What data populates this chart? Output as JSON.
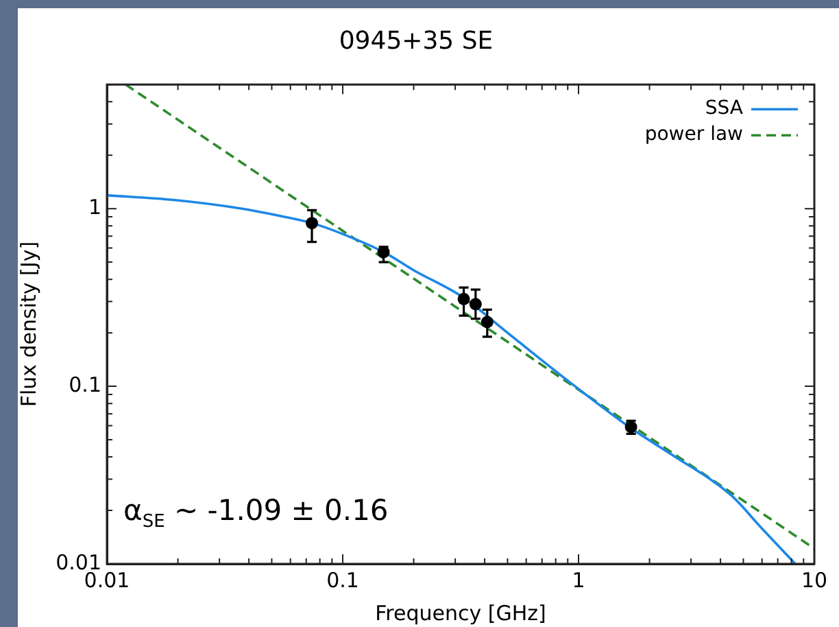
{
  "chart_data": {
    "type": "line",
    "title": "0945+35 SE",
    "xlabel": "Frequency [GHz]",
    "ylabel": "Flux density [Jy]",
    "log": "xy",
    "xlim": [
      0.01,
      10
    ],
    "ylim": [
      0.01,
      5
    ],
    "xticks": [
      0.01,
      {
        "value": 0.02,
        "label": null
      },
      {
        "value": 0.03,
        "label": null
      },
      {
        "value": 0.04,
        "label": null
      },
      {
        "value": 0.05,
        "label": null
      },
      {
        "value": 0.06,
        "label": null
      },
      {
        "value": 0.07,
        "label": null
      },
      {
        "value": 0.08,
        "label": null
      },
      {
        "value": 0.09,
        "label": null
      },
      0.1,
      {
        "value": 0.2,
        "label": null
      },
      {
        "value": 0.3,
        "label": null
      },
      {
        "value": 0.4,
        "label": null
      },
      {
        "value": 0.5,
        "label": null
      },
      {
        "value": 0.6,
        "label": null
      },
      {
        "value": 0.7,
        "label": null
      },
      {
        "value": 0.8,
        "label": null
      },
      {
        "value": 0.9,
        "label": null
      },
      1,
      {
        "value": 2,
        "label": null
      },
      {
        "value": 3,
        "label": null
      },
      {
        "value": 4,
        "label": null
      },
      {
        "value": 5,
        "label": null
      },
      {
        "value": 6,
        "label": null
      },
      {
        "value": 7,
        "label": null
      },
      {
        "value": 8,
        "label": null
      },
      {
        "value": 9,
        "label": null
      },
      10
    ],
    "yticks": [
      0.01,
      {
        "value": 0.02,
        "label": null
      },
      {
        "value": 0.03,
        "label": null
      },
      {
        "value": 0.04,
        "label": null
      },
      {
        "value": 0.05,
        "label": null
      },
      {
        "value": 0.06,
        "label": null
      },
      {
        "value": 0.07,
        "label": null
      },
      {
        "value": 0.08,
        "label": null
      },
      {
        "value": 0.09,
        "label": null
      },
      0.1,
      {
        "value": 0.2,
        "label": null
      },
      {
        "value": 0.3,
        "label": null
      },
      {
        "value": 0.4,
        "label": null
      },
      {
        "value": 0.5,
        "label": null
      },
      {
        "value": 0.6,
        "label": null
      },
      {
        "value": 0.7,
        "label": null
      },
      {
        "value": 0.8,
        "label": null
      },
      {
        "value": 0.9,
        "label": null
      },
      1,
      {
        "value": 2,
        "label": null
      },
      {
        "value": 3,
        "label": null
      },
      {
        "value": 4,
        "label": null
      },
      {
        "value": 5,
        "label": null
      }
    ],
    "grid": false,
    "legend": "top right",
    "series": [
      {
        "name": "SSA",
        "color": "#1e88e5",
        "line_style": "solid",
        "marker": "none",
        "x": [
          0.01,
          0.0192,
          0.0375,
          0.05,
          0.074,
          0.1,
          0.149,
          0.2,
          0.32,
          0.5,
          0.93,
          1.67,
          2.5,
          4.43,
          6,
          8.3
        ],
        "values": [
          1.19,
          1.12,
          1.0,
          0.93,
          0.83,
          0.72,
          0.57,
          0.45,
          0.32,
          0.2,
          0.104,
          0.058,
          0.041,
          0.0244,
          0.0158,
          0.01
        ]
      },
      {
        "name": "power law",
        "color": "#2e8b2e",
        "line_style": "dashed",
        "marker": "none",
        "x": [
          0.012,
          10
        ],
        "values": [
          5,
          0.0122
        ]
      },
      {
        "type": "scatter",
        "color": "#000000",
        "marker": "circle",
        "x": [
          0.074,
          0.149,
          0.326,
          0.366,
          0.41,
          1.67
        ],
        "values": [
          0.83,
          0.57,
          0.31,
          0.29,
          0.23,
          0.059
        ],
        "errors": [
          [
            0.65,
            0.98
          ],
          [
            0.5,
            0.61
          ],
          [
            0.25,
            0.36
          ],
          [
            0.24,
            0.35
          ],
          [
            0.19,
            0.27
          ],
          [
            0.054,
            0.064
          ]
        ]
      }
    ],
    "annotations": [
      "α$_{SE}$ ~ -1.09 ± 0.16"
    ]
  }
}
